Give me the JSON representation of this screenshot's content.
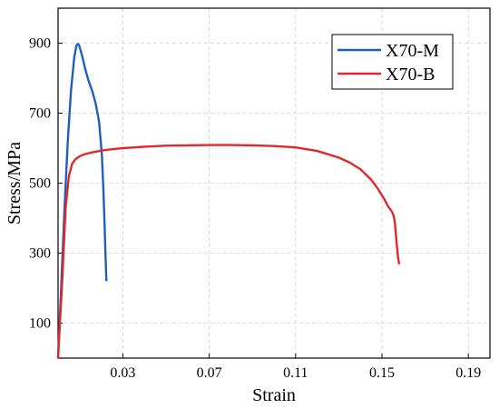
{
  "chart_data": {
    "type": "line",
    "xlabel": "Strain",
    "ylabel": "Stress/MPa",
    "xlim": [
      0,
      0.2
    ],
    "ylim": [
      0,
      1000
    ],
    "xticks": [
      "0.03",
      "0.07",
      "0.11",
      "0.15",
      "0.19"
    ],
    "yticks": [
      "100",
      "300",
      "500",
      "700",
      "900"
    ],
    "grid": true,
    "legend_position": "top-right",
    "series": [
      {
        "name": "X70-M",
        "color": "#1f5fbf",
        "x": [
          0.0,
          0.0015,
          0.003,
          0.0045,
          0.006,
          0.0075,
          0.0085,
          0.0092,
          0.0098,
          0.0105,
          0.0115,
          0.0125,
          0.014,
          0.016,
          0.0175,
          0.019,
          0.0203,
          0.021,
          0.0215,
          0.0219,
          0.0222,
          0.0224
        ],
        "y": [
          0,
          210,
          430,
          620,
          765,
          860,
          893,
          898,
          893,
          878,
          855,
          828,
          795,
          760,
          725,
          675,
          580,
          480,
          390,
          310,
          250,
          220
        ]
      },
      {
        "name": "X70-B",
        "color": "#e0282c",
        "x": [
          0.0,
          0.002,
          0.0035,
          0.005,
          0.0065,
          0.008,
          0.01,
          0.012,
          0.015,
          0.02,
          0.025,
          0.03,
          0.04,
          0.05,
          0.06,
          0.07,
          0.08,
          0.09,
          0.1,
          0.11,
          0.12,
          0.13,
          0.135,
          0.14,
          0.145,
          0.148,
          0.151,
          0.153,
          0.1545,
          0.1555,
          0.156,
          0.1565,
          0.157,
          0.1575,
          0.158
        ],
        "y": [
          0,
          230,
          430,
          520,
          555,
          568,
          577,
          582,
          587,
          593,
          597,
          600,
          604,
          607,
          608,
          609,
          609,
          608,
          606,
          602,
          592,
          573,
          559,
          540,
          510,
          485,
          455,
          432,
          420,
          405,
          385,
          350,
          315,
          285,
          268
        ]
      }
    ]
  }
}
